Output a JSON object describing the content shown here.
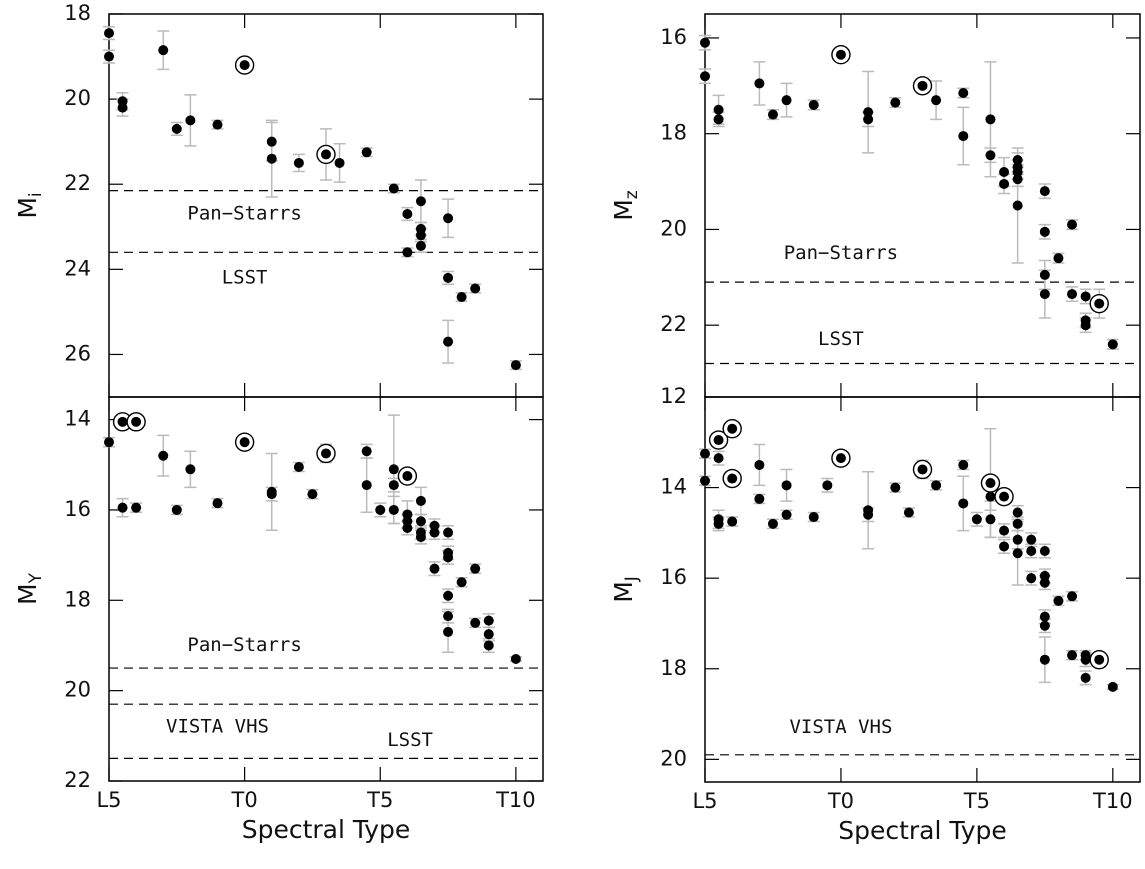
{
  "chart_data": [
    {
      "type": "scatter",
      "ylabel": {
        "text": "M",
        "subscript": "i"
      },
      "xlim": [
        15,
        31
      ],
      "ylim": [
        27,
        18
      ],
      "xticks": [
        15,
        20,
        25,
        30
      ],
      "yticks": [
        18,
        20,
        22,
        24,
        26
      ],
      "hlines": [
        22.15,
        23.6
      ],
      "line_color": "#000000",
      "error_color": "#bbbbbb",
      "annotations": [
        {
          "text": "Pan−Starrs",
          "x": 20,
          "y": 22.7
        },
        {
          "text": "LSST",
          "x": 20,
          "y": 24.2
        }
      ],
      "series": [
        {
          "color": "#000000",
          "marker": "dot",
          "x": [
            15,
            15,
            15.5,
            15.5,
            17,
            17.5,
            18,
            19,
            21,
            21,
            22,
            23.5,
            24.5,
            25.5,
            26,
            26,
            26.5,
            26.5,
            26.5,
            26.5,
            27.5,
            27.5,
            27.5,
            28,
            28.5,
            30
          ],
          "values": [
            18.45,
            19.0,
            20.05,
            20.2,
            18.85,
            20.7,
            20.5,
            20.6,
            21.0,
            21.4,
            21.5,
            21.5,
            21.25,
            22.1,
            22.7,
            23.6,
            22.4,
            23.05,
            23.2,
            23.45,
            22.8,
            24.2,
            25.7,
            24.65,
            24.45,
            26.25
          ],
          "errors": [
            0.15,
            0.15,
            0.2,
            0.2,
            0.45,
            0.15,
            0.6,
            0.1,
            0.45,
            0.9,
            0.2,
            0.45,
            0.1,
            0.1,
            0.15,
            0.1,
            0.5,
            0.15,
            0.15,
            0.15,
            0.45,
            0.15,
            0.5,
            0.1,
            0.1,
            0.1
          ]
        },
        {
          "color": "#000000",
          "marker": "circled",
          "x": [
            20,
            23
          ],
          "values": [
            19.2,
            21.3
          ],
          "errors": [
            0.1,
            0.6
          ]
        }
      ]
    },
    {
      "type": "scatter",
      "ylabel": {
        "text": "M",
        "subscript": "z"
      },
      "xlim": [
        15,
        31
      ],
      "ylim": [
        23.5,
        15.5
      ],
      "xticks": [
        15,
        20,
        25,
        30
      ],
      "yticks": [
        16,
        18,
        20,
        22
      ],
      "hlines": [
        21.1,
        22.8
      ],
      "line_color": "#000000",
      "error_color": "#bbbbbb",
      "annotations": [
        {
          "text": "Pan−Starrs",
          "x": 20,
          "y": 20.5
        },
        {
          "text": "LSST",
          "x": 20,
          "y": 22.3
        }
      ],
      "series": [
        {
          "color": "#000000",
          "marker": "dot",
          "x": [
            15,
            15,
            15.5,
            15.5,
            17,
            17.5,
            18,
            19,
            21,
            21,
            22,
            23.5,
            24.5,
            24.5,
            25.5,
            25.5,
            26,
            26,
            26.5,
            26.5,
            26.5,
            26.5,
            26.5,
            27.5,
            27.5,
            27.5,
            27.5,
            28,
            28.5,
            28.5,
            29,
            29,
            29,
            30
          ],
          "values": [
            16.1,
            16.8,
            17.5,
            17.7,
            16.95,
            17.6,
            17.3,
            17.4,
            17.55,
            17.7,
            17.35,
            17.3,
            17.15,
            18.05,
            17.7,
            18.45,
            18.8,
            19.05,
            18.55,
            18.7,
            18.8,
            18.95,
            19.5,
            19.2,
            20.05,
            20.95,
            21.35,
            20.6,
            19.9,
            21.35,
            21.4,
            21.9,
            22.0,
            22.4
          ],
          "errors": [
            0.15,
            0.15,
            0.3,
            0.15,
            0.45,
            0.1,
            0.35,
            0.1,
            0.85,
            0.15,
            0.1,
            0.4,
            0.1,
            0.6,
            1.2,
            0.15,
            0.3,
            0.2,
            0.15,
            0.15,
            0.15,
            0.15,
            1.2,
            0.15,
            0.15,
            0.3,
            0.5,
            0.1,
            0.1,
            0.15,
            0.15,
            0.15,
            0.15,
            0.1
          ]
        },
        {
          "color": "#000000",
          "marker": "circled",
          "x": [
            20,
            23,
            29.5
          ],
          "values": [
            16.35,
            17.0,
            21.55
          ],
          "errors": [
            0.1,
            0.15,
            0.3
          ]
        }
      ]
    },
    {
      "type": "scatter",
      "ylabel": {
        "text": "M",
        "subscript": "Y"
      },
      "xlabel": "Spectral Type",
      "xlim": [
        15,
        31
      ],
      "ylim": [
        22,
        13.5
      ],
      "xticks": [
        {
          "value": 15,
          "label": "L5"
        },
        {
          "value": 20,
          "label": "T0"
        },
        {
          "value": 25,
          "label": "T5"
        },
        {
          "value": 30,
          "label": "T10"
        }
      ],
      "yticks": [
        14,
        16,
        18,
        20,
        22
      ],
      "hlines": [
        19.5,
        20.3,
        21.5
      ],
      "line_color": "#000000",
      "error_color": "#bbbbbb",
      "annotations": [
        {
          "text": "Pan−Starrs",
          "x": 20,
          "y": 19.0
        },
        {
          "text": "VISTA VHS",
          "x": 19,
          "y": 20.8
        },
        {
          "text": "LSST",
          "x": 26.1,
          "y": 21.1
        }
      ],
      "series": [
        {
          "color": "#000000",
          "marker": "dot",
          "x": [
            15,
            15.5,
            16,
            17,
            17.5,
            18,
            19,
            21,
            21,
            22,
            22.5,
            24.5,
            24.5,
            25,
            25.5,
            25.5,
            25.5,
            26,
            26,
            26,
            26.5,
            26.5,
            26.5,
            26.5,
            27,
            27,
            27,
            27.5,
            27.5,
            27.5,
            27.5,
            27.5,
            27.5,
            28,
            28.5,
            28.5,
            29,
            29,
            29,
            30
          ],
          "values": [
            14.5,
            15.95,
            15.95,
            14.8,
            16.0,
            15.1,
            15.85,
            15.6,
            15.65,
            15.05,
            15.65,
            14.7,
            15.45,
            16.0,
            15.1,
            15.45,
            16.0,
            16.1,
            16.25,
            16.4,
            15.8,
            16.25,
            16.5,
            16.6,
            16.35,
            16.5,
            17.3,
            16.5,
            16.95,
            17.05,
            17.9,
            18.35,
            18.7,
            17.6,
            17.3,
            18.5,
            18.45,
            18.75,
            19.0,
            19.3
          ],
          "errors": [
            0.1,
            0.2,
            0.1,
            0.45,
            0.1,
            0.4,
            0.1,
            0.85,
            0.15,
            0.1,
            0.1,
            0.15,
            0.6,
            0.15,
            1.2,
            0.15,
            0.3,
            0.3,
            0.15,
            0.15,
            0.3,
            0.15,
            0.15,
            0.15,
            0.15,
            0.15,
            0.15,
            0.15,
            0.15,
            0.15,
            0.15,
            0.15,
            0.45,
            0.1,
            0.1,
            0.1,
            0.15,
            0.15,
            0.15,
            0.05
          ]
        },
        {
          "color": "#000000",
          "marker": "circled",
          "x": [
            15.5,
            16,
            20,
            23,
            26
          ],
          "values": [
            14.05,
            14.05,
            14.5,
            14.75,
            15.25
          ],
          "errors": [
            0.1,
            0.1,
            0.1,
            0.2,
            0.15
          ]
        }
      ]
    },
    {
      "type": "scatter",
      "ylabel": {
        "text": "M",
        "subscript": "J"
      },
      "xlabel": "Spectral Type",
      "xlim": [
        15,
        31
      ],
      "ylim": [
        20.5,
        12
      ],
      "xticks": [
        {
          "value": 15,
          "label": "L5"
        },
        {
          "value": 20,
          "label": "T0"
        },
        {
          "value": 25,
          "label": "T5"
        },
        {
          "value": 30,
          "label": "T10"
        }
      ],
      "yticks": [
        12,
        14,
        16,
        18,
        20
      ],
      "hlines": [
        19.9
      ],
      "line_color": "#000000",
      "error_color": "#bbbbbb",
      "annotations": [
        {
          "text": "VISTA VHS",
          "x": 20,
          "y": 19.3
        }
      ],
      "series": [
        {
          "color": "#000000",
          "marker": "dot",
          "x": [
            15,
            15,
            15.5,
            15.5,
            15.5,
            16,
            17,
            17,
            17.5,
            18,
            18,
            19,
            19.5,
            21,
            21,
            22,
            22.5,
            23.5,
            24.5,
            24.5,
            25,
            25.5,
            25.5,
            26,
            26,
            26.5,
            26.5,
            26.5,
            26.5,
            27,
            27,
            27,
            27.5,
            27.5,
            27.5,
            27.5,
            27.5,
            27.5,
            28,
            28.5,
            28.5,
            29,
            29,
            29,
            30
          ],
          "values": [
            13.25,
            13.85,
            13.35,
            14.7,
            14.8,
            14.75,
            13.5,
            14.25,
            14.8,
            14.6,
            13.95,
            14.65,
            13.95,
            14.5,
            14.6,
            14.0,
            14.55,
            13.95,
            13.5,
            14.35,
            14.7,
            14.2,
            14.7,
            14.95,
            15.3,
            14.55,
            14.8,
            15.15,
            15.45,
            15.15,
            15.4,
            16.0,
            15.4,
            15.95,
            16.1,
            16.85,
            17.05,
            17.8,
            16.5,
            16.4,
            17.7,
            17.7,
            17.8,
            18.2,
            18.4
          ],
          "errors": [
            0.1,
            0.1,
            0.15,
            0.2,
            0.15,
            0.1,
            0.45,
            0.1,
            0.1,
            0.1,
            0.35,
            0.1,
            0.15,
            0.85,
            0.15,
            0.1,
            0.1,
            0.1,
            0.1,
            0.6,
            0.15,
            0.3,
            0.4,
            0.15,
            0.15,
            0.15,
            0.15,
            0.2,
            0.7,
            0.15,
            0.15,
            0.15,
            0.15,
            0.15,
            0.15,
            0.15,
            0.15,
            0.5,
            0.1,
            0.1,
            0.1,
            0.1,
            0.15,
            0.15,
            0.05
          ]
        },
        {
          "color": "#000000",
          "marker": "circled",
          "x": [
            15.5,
            16,
            16,
            20,
            23,
            25.5,
            26,
            29.5
          ],
          "values": [
            12.95,
            12.7,
            13.8,
            13.35,
            13.6,
            13.9,
            14.2,
            17.8
          ],
          "errors": [
            0.1,
            0.1,
            0.1,
            0.15,
            0.2,
            1.2,
            0.15,
            0.15
          ]
        }
      ]
    }
  ]
}
